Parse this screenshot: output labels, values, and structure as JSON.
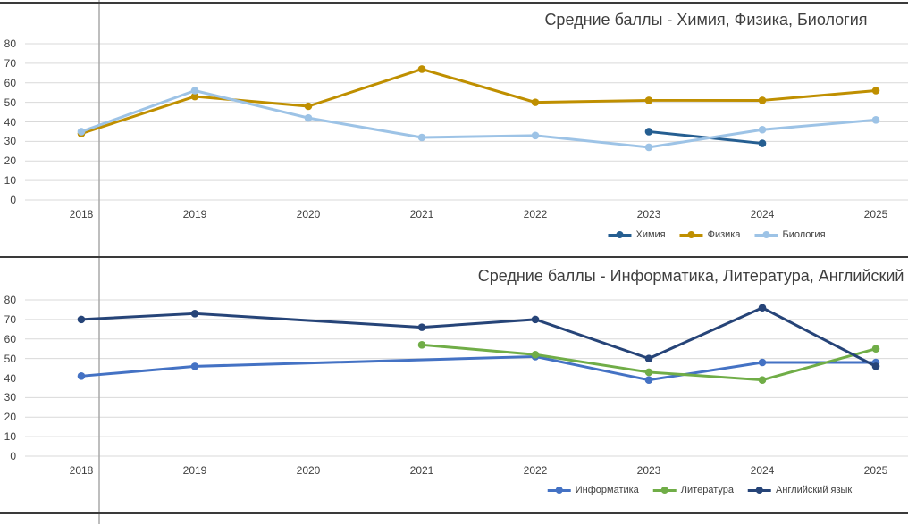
{
  "app": {
    "background": "#ffffff",
    "worksheet_divider_color": "#a8a8a8",
    "chart_border_color": "#3a3a3a",
    "gridline_color": "#d9d9d9",
    "text_color": "#3f3f3f"
  },
  "chart_data": [
    {
      "type": "line",
      "title": "Средние баллы - Химия, Физика, Биология",
      "categories": [
        "2018",
        "2019",
        "2020",
        "2021",
        "2022",
        "2023",
        "2024",
        "2025"
      ],
      "series": [
        {
          "name": "Химия",
          "color": "#255E91",
          "values": [
            null,
            null,
            null,
            null,
            null,
            35,
            29,
            null
          ]
        },
        {
          "name": "Физика",
          "color": "#BF8F00",
          "values": [
            34,
            53,
            48,
            67,
            50,
            51,
            51,
            56
          ]
        },
        {
          "name": "Биология",
          "color": "#9DC3E6",
          "values": [
            35,
            56,
            42,
            32,
            33,
            27,
            36,
            41
          ]
        }
      ],
      "ylim": [
        0,
        80
      ],
      "ytick_step": 10,
      "yticks": [
        0,
        10,
        20,
        30,
        40,
        50,
        60,
        70,
        80
      ],
      "grid": true,
      "legend_position": "bottom"
    },
    {
      "type": "line",
      "title": "Средние баллы - Информатика, Литература, Английский язык",
      "categories": [
        "2018",
        "2019",
        "2020",
        "2021",
        "2022",
        "2023",
        "2024",
        "2025"
      ],
      "series": [
        {
          "name": "Информатика",
          "color": "#4472C4",
          "values": [
            41,
            46,
            null,
            null,
            51,
            39,
            48,
            48
          ]
        },
        {
          "name": "Литература",
          "color": "#70AD47",
          "values": [
            null,
            null,
            null,
            57,
            52,
            43,
            39,
            55
          ]
        },
        {
          "name": "Английский язык",
          "color": "#264478",
          "values": [
            70,
            73,
            null,
            66,
            70,
            50,
            76,
            46
          ]
        }
      ],
      "ylim": [
        0,
        80
      ],
      "ytick_step": 10,
      "yticks": [
        0,
        10,
        20,
        30,
        40,
        50,
        60,
        70,
        80
      ],
      "grid": true,
      "legend_position": "bottom"
    }
  ]
}
